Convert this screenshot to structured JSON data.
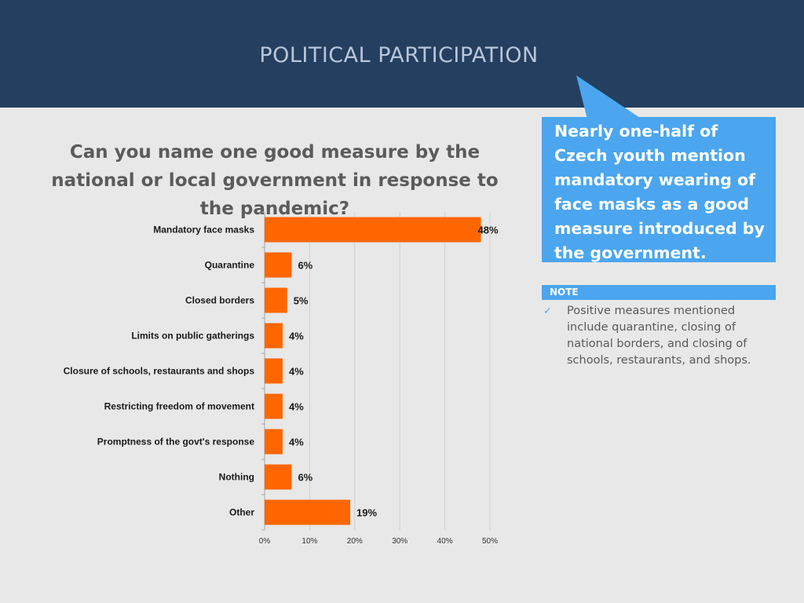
{
  "header": {
    "title": "POLITICAL PARTICIPATION"
  },
  "question": "Can you name one good measure by the national or local government in response to the pandemic?",
  "callout": {
    "text": "Nearly one-half of Czech youth mention mandatory wearing of face masks as a good measure introduced by the government."
  },
  "note": {
    "label": "NOTE",
    "check_icon": "checkmark-icon",
    "text": "Positive measures mentioned include quarantine, closing of national borders, and closing of schools, restaurants, and shops."
  },
  "colors": {
    "header_bg": "#243f60",
    "accent_blue": "#4ba6ef",
    "bar": "#ff6600",
    "background": "#e8e8e8"
  },
  "chart_data": {
    "type": "bar",
    "orientation": "horizontal",
    "categories": [
      "Mandatory face masks",
      "Quarantine",
      "Closed borders",
      "Limits on public gatherings",
      "Closure of schools, restaurants and shops",
      "Restricting freedom of movement",
      "Promptness of the govt's response",
      "Nothing",
      "Other"
    ],
    "values": [
      48,
      6,
      5,
      4,
      4,
      4,
      4,
      6,
      19
    ],
    "data_labels": [
      "48%",
      "6%",
      "5%",
      "4%",
      "4%",
      "4%",
      "4%",
      "6%",
      "19%"
    ],
    "xlim": [
      0,
      50
    ],
    "xticks": [
      0,
      10,
      20,
      30,
      40,
      50
    ],
    "xtick_labels": [
      "0%",
      "10%",
      "20%",
      "30%",
      "40%",
      "50%"
    ],
    "grid": true,
    "legend": false
  }
}
